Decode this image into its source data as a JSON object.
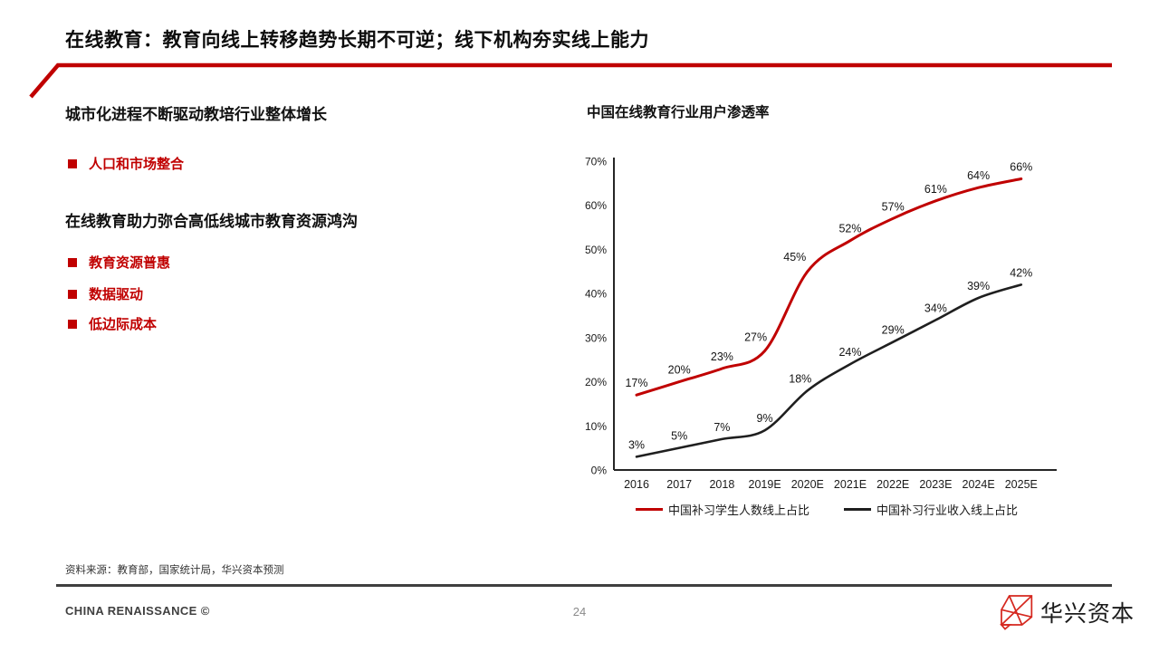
{
  "slide": {
    "title": "在线教育：教育向线上转移趋势长期不可逆；线下机构夯实线上能力",
    "left_panel": {
      "section1": {
        "heading": "城市化进程不断驱动教培行业整体增长",
        "bullets": [
          "人口和市场整合"
        ]
      },
      "section2": {
        "heading": "在线教育助力弥合高低线城市教育资源鸿沟",
        "bullets": [
          "教育资源普惠",
          "数据驱动",
          "低边际成本"
        ]
      }
    },
    "source_note": "资料来源：教育部，国家统计局，华兴资本预测",
    "footer": {
      "company": "CHINA RENAISSANCE ©",
      "page_number": "24",
      "logo_text": "华兴资本"
    }
  },
  "colors": {
    "accent_red": "#c00000",
    "line_black": "#1f1f1f",
    "logo_red": "#d5281f",
    "divider_gray": "#3f3f3f"
  },
  "chart_data": {
    "type": "line",
    "title": "中国在线教育行业用户渗透率",
    "categories": [
      "2016",
      "2017",
      "2018",
      "2019E",
      "2020E",
      "2021E",
      "2022E",
      "2023E",
      "2024E",
      "2025E"
    ],
    "series": [
      {
        "name": "中国补习学生人数线上占比",
        "color": "#c00000",
        "values": [
          17,
          20,
          23,
          27,
          45,
          52,
          57,
          61,
          64,
          66
        ]
      },
      {
        "name": "中国补习行业收入线上占比",
        "color": "#1f1f1f",
        "values": [
          3,
          5,
          7,
          9,
          18,
          24,
          29,
          34,
          39,
          42
        ]
      }
    ],
    "ylim": [
      0,
      70
    ],
    "ytick_step": 10,
    "ytick_suffix": "%",
    "data_label_suffix": "%",
    "grid": false,
    "legend_position": "bottom",
    "smoothed": true
  }
}
